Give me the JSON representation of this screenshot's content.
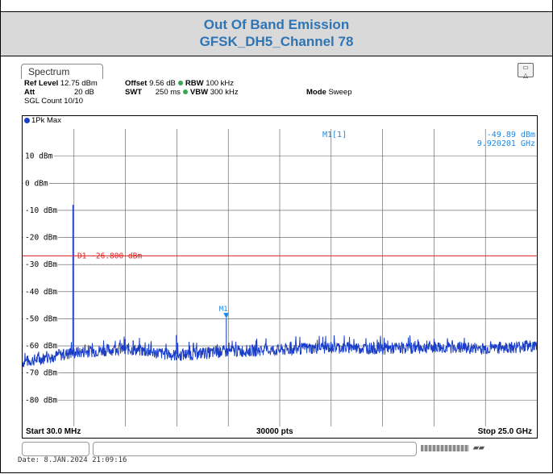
{
  "report": {
    "title_line1": "Out Of Band Emission",
    "title_line2": "GFSK_DH5_Channel 78"
  },
  "analyzer": {
    "tab_label": "Spectrum",
    "ref_level_label": "Ref Level",
    "ref_level_value": "12.75 dBm",
    "offset_label": "Offset",
    "offset_value": "9.56 dB",
    "rbw_label": "RBW",
    "rbw_value": "100 kHz",
    "att_label": "Att",
    "att_value": "20 dB",
    "swt_label": "SWT",
    "swt_value": "250 ms",
    "vbw_label": "VBW",
    "vbw_value": "300 kHz",
    "mode_label": "Mode",
    "mode_value": "Sweep",
    "sgl_count": "SGL Count 10/10",
    "trace_label": "1Pk Max",
    "marker_readout_name": "M1[1]",
    "marker_readout_level": "-49.89 dBm",
    "marker_readout_freq": "9.920201 GHz",
    "display_line_label": "D1  -26.800 dBm",
    "marker_label": "M1",
    "start": "Start 30.0 MHz",
    "points": "30000 pts",
    "stop": "Stop 25.0 GHz",
    "date": "Date: 8.JAN.2024  21:09:16",
    "colors": {
      "trace": "#1a3ec8",
      "display_line": "#e02020",
      "marker": "#1e88e5",
      "readout": "#1e88e5"
    }
  },
  "chart_data": {
    "type": "line",
    "xlabel": "",
    "ylabel": "",
    "x_range_ghz": [
      0.03,
      25.0
    ],
    "ylim": [
      -90,
      20
    ],
    "y_tick_labels": [
      "10 dBm",
      "0 dBm",
      "-10 dBm",
      "-20 dBm",
      "-30 dBm",
      "-40 dBm",
      "-50 dBm",
      "-60 dBm",
      "-70 dBm",
      "-80 dBm"
    ],
    "y_tick_values": [
      10,
      0,
      -10,
      -20,
      -30,
      -40,
      -50,
      -60,
      -70,
      -80
    ],
    "display_line_dbm": -26.8,
    "marker": {
      "x_ghz": 9.920201,
      "y_dbm": -49.89
    },
    "carrier": {
      "x_ghz": 2.48,
      "y_dbm": -8
    },
    "noise_floor_dbm": [
      -66,
      -62.5,
      -61,
      -63.5,
      -62,
      -61.5,
      -60.5,
      -61,
      -60.5,
      -61,
      -60
    ],
    "spurs": [
      {
        "x_ghz": 5.0,
        "y_dbm": -57.5
      },
      {
        "x_ghz": 5.4,
        "y_dbm": -58
      },
      {
        "x_ghz": 7.5,
        "y_dbm": -56
      }
    ]
  }
}
